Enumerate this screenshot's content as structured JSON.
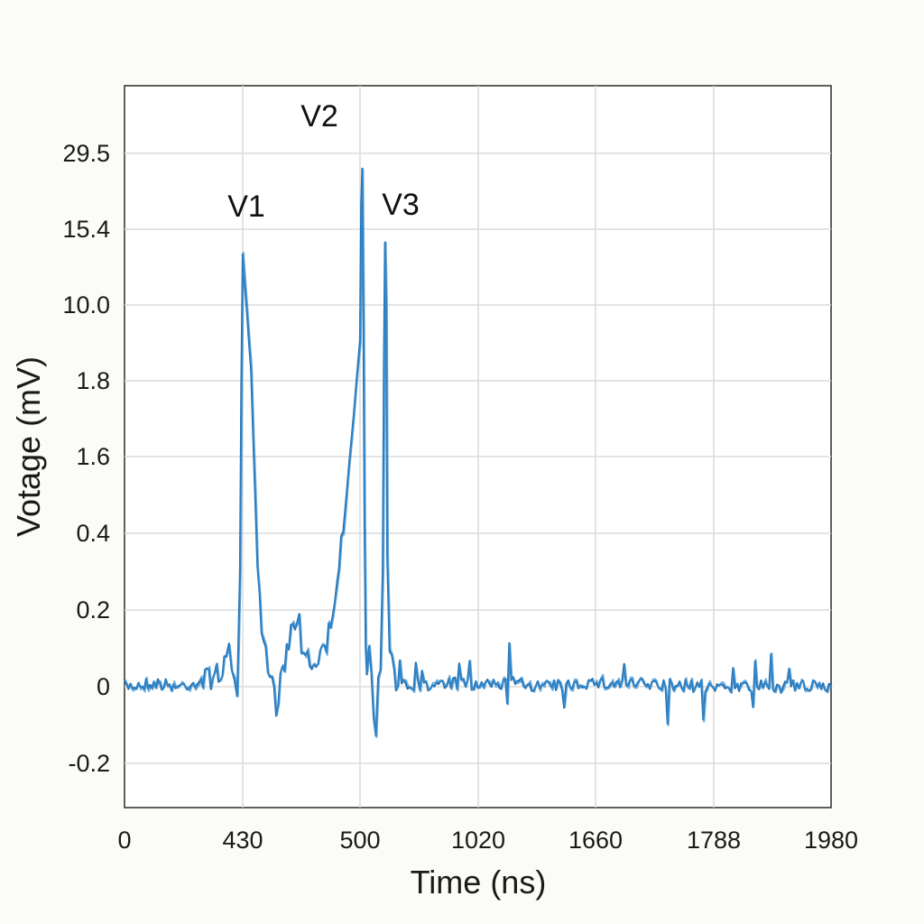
{
  "chart_data": {
    "type": "line",
    "title": "",
    "xlabel": "Time (ns)",
    "ylabel": "Votage (mV)",
    "grid": true,
    "legend": "none",
    "line_color": "#1f6fb2",
    "x_ticks": [
      "0",
      "430",
      "500",
      "1020",
      "1660",
      "1788",
      "1980"
    ],
    "y_ticks": [
      "-0.2",
      "0",
      "0.2",
      "0.4",
      "1.6",
      "1.8",
      "10.0",
      "15.4",
      "29.5"
    ],
    "annotations": [
      {
        "text": "V1",
        "x": 430,
        "y": 15.4
      },
      {
        "text": "V2",
        "x": 500,
        "y": 29.5
      },
      {
        "text": "V3",
        "x": 1020,
        "y": 15.4
      }
    ],
    "series": [
      {
        "x": [
          0,
          100,
          200,
          300,
          370,
          380,
          390,
          400,
          410,
          420,
          425,
          430,
          435,
          440,
          445,
          450,
          460,
          470,
          480,
          490,
          500,
          505,
          510,
          515,
          520,
          525,
          530,
          540,
          550,
          560,
          570,
          580,
          590,
          600,
          605,
          610,
          615,
          620,
          630,
          650,
          700,
          800,
          900,
          1000,
          1200,
          1400,
          1600,
          1800,
          1980
        ],
        "y": [
          0,
          0.01,
          0,
          0.02,
          0.05,
          0.12,
          0.06,
          0.03,
          0.0,
          0.3,
          1.8,
          13.5,
          3.0,
          0.15,
          0.05,
          -0.05,
          0.18,
          0.05,
          0.1,
          0.4,
          6.0,
          20.0,
          26.5,
          8.0,
          0.6,
          0.1,
          0.05,
          0.1,
          0.02,
          -0.05,
          -0.1,
          0.0,
          0.05,
          0.3,
          3.5,
          14.5,
          10.0,
          0.4,
          0.08,
          0.02,
          0.01,
          0.0,
          0.01,
          0.0,
          0.01,
          0.0,
          0.01,
          0.0,
          0.0
        ]
      }
    ]
  }
}
